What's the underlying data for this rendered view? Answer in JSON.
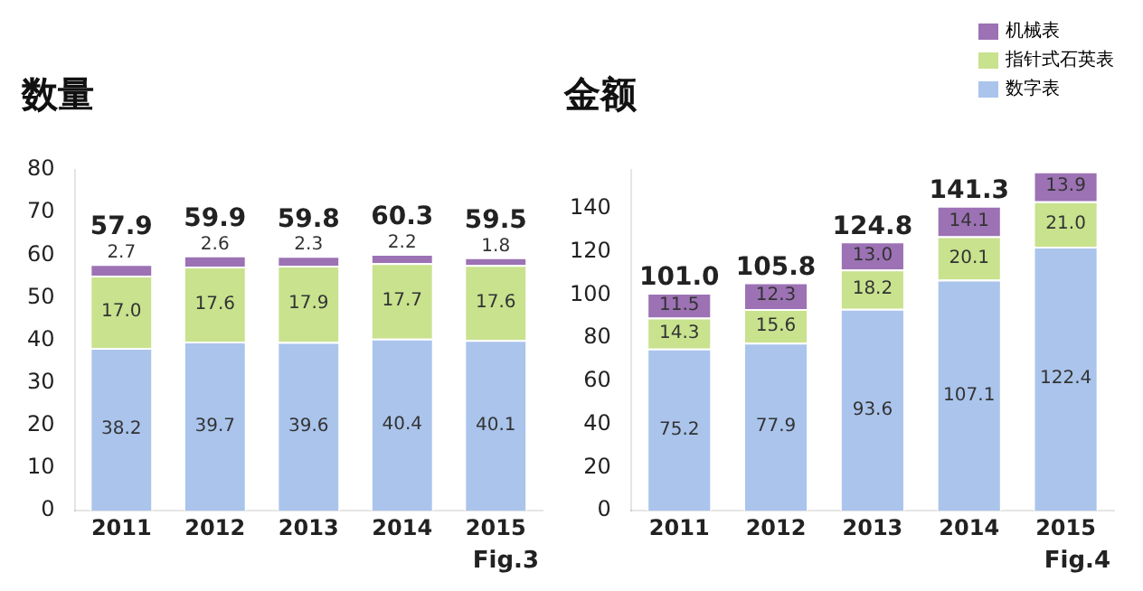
{
  "chart_data": [
    {
      "type": "bar",
      "title": "数量",
      "categories": [
        "2011",
        "2012",
        "2013",
        "2014",
        "2015"
      ],
      "stacked": true,
      "series": [
        {
          "color": "#aac4ec",
          "values": [
            38.2,
            39.7,
            39.6,
            40.4,
            40.1
          ],
          "value_labels": [
            "38.2",
            "39.7",
            "39.6",
            "40.4",
            "40.1"
          ]
        },
        {
          "color": "#c8e28e",
          "values": [
            17.0,
            17.6,
            17.9,
            17.7,
            17.6
          ],
          "value_labels": [
            "17.0",
            "17.6",
            "17.9",
            "17.7",
            "17.6"
          ]
        },
        {
          "color": "#9c72b4",
          "values": [
            2.7,
            2.6,
            2.3,
            2.2,
            1.8
          ],
          "value_labels": [
            "2.7",
            "2.6",
            "2.3",
            "2.2",
            "1.8"
          ]
        }
      ],
      "totals": [
        "57.9",
        "59.9",
        "59.8",
        "60.3",
        "59.5"
      ],
      "ylim": [
        0,
        80
      ],
      "yticks": [
        0,
        10,
        20,
        30,
        40,
        50,
        60,
        70,
        80
      ],
      "grid": false,
      "legend": false,
      "annotations": [
        "Fig.3"
      ]
    },
    {
      "type": "bar",
      "title": "金额",
      "categories": [
        "2011",
        "2012",
        "2013",
        "2014",
        "2015"
      ],
      "stacked": true,
      "series": [
        {
          "name": "数字表",
          "color": "#aac4ec",
          "values": [
            75.2,
            77.9,
            93.6,
            107.1,
            122.4
          ],
          "value_labels": [
            "75.2",
            "77.9",
            "93.6",
            "107.1",
            "122.4"
          ]
        },
        {
          "name": "指针式石英表",
          "color": "#c8e28e",
          "values": [
            14.3,
            15.6,
            18.2,
            20.1,
            21.0
          ],
          "value_labels": [
            "14.3",
            "15.6",
            "18.2",
            "20.1",
            "21.0"
          ]
        },
        {
          "name": "机械表",
          "color": "#9c72b4",
          "values": [
            11.5,
            12.3,
            13.0,
            14.1,
            13.9
          ],
          "value_labels": [
            "11.5",
            "12.3",
            "13.0",
            "14.1",
            "13.9"
          ]
        }
      ],
      "totals": [
        "101.0",
        "105.8",
        "124.8",
        "141.3",
        null
      ],
      "ylim": [
        0,
        158
      ],
      "yticks": [
        0,
        20,
        40,
        60,
        80,
        100,
        120,
        140
      ],
      "grid": false,
      "legend": "top right",
      "annotations": [
        "Fig.4"
      ]
    }
  ]
}
